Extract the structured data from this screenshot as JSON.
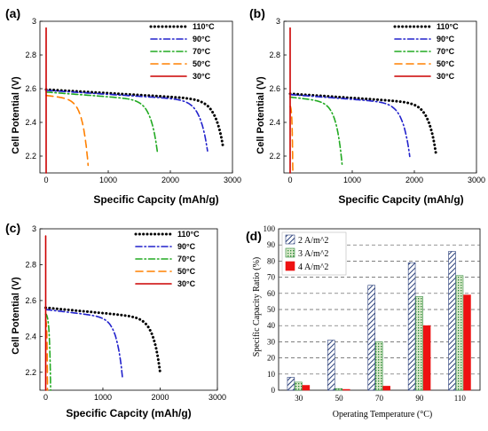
{
  "chart_data": [
    {
      "type": "line",
      "panel_label": "(a)",
      "xlabel": "Specific Capcity (mAh/g)",
      "ylabel": "Cell Potential (V)",
      "xlim": [
        -100,
        3000
      ],
      "ylim": [
        2.1,
        3.0
      ],
      "xticks": [
        0,
        1000,
        2000,
        3000
      ],
      "yticks": [
        2.2,
        2.4,
        2.6,
        2.8,
        3.0
      ],
      "xtick_labels": [
        "0",
        "1000",
        "2000",
        "3000"
      ],
      "ytick_labels": [
        "2.2",
        "2.4",
        "2.6",
        "2.8",
        "3"
      ],
      "legend_position": "top-right",
      "series": [
        {
          "name": "110°C",
          "color": "#000000",
          "style": "dotted",
          "v0": 2.595,
          "slope": 2.18e-05,
          "qmax": 2800,
          "drop": 0.19,
          "k": 130
        },
        {
          "name": "90°C",
          "color": "#2222cc",
          "style": "dashdot",
          "v0": 2.59,
          "slope": 2.35e-05,
          "qmax": 2550,
          "drop": 0.2,
          "k": 120
        },
        {
          "name": "70°C",
          "color": "#22aa22",
          "style": "dashdot",
          "v0": 2.58,
          "slope": 2.8e-05,
          "qmax": 1750,
          "drop": 0.21,
          "k": 110
        },
        {
          "name": "50°C",
          "color": "#ff8000",
          "style": "dashed",
          "v0": 2.56,
          "slope": 4e-05,
          "qmax": 640,
          "drop": 0.26,
          "k": 90
        },
        {
          "name": "30°C",
          "color": "#cc0000",
          "style": "solid",
          "v0": 2.96,
          "slope": 0.0,
          "qmax": 0,
          "drop": 0.0,
          "k": 1
        }
      ]
    },
    {
      "type": "line",
      "panel_label": "(b)",
      "xlabel": "Specific Capcity (mAh/g)",
      "ylabel": "Cell Potential (V)",
      "xlim": [
        -100,
        3000
      ],
      "ylim": [
        2.1,
        3.0
      ],
      "xticks": [
        0,
        1000,
        2000,
        3000
      ],
      "yticks": [
        2.2,
        2.4,
        2.6,
        2.8,
        3.0
      ],
      "xtick_labels": [
        "0",
        "1000",
        "2000",
        "3000"
      ],
      "ytick_labels": [
        "2.2",
        "2.4",
        "2.6",
        "2.8",
        "3"
      ],
      "legend_position": "top-right",
      "series": [
        {
          "name": "110°C",
          "color": "#000000",
          "style": "dotted",
          "v0": 2.57,
          "slope": 2.5e-05,
          "qmax": 2300,
          "drop": 0.2,
          "k": 120
        },
        {
          "name": "90°C",
          "color": "#2222cc",
          "style": "dashdot",
          "v0": 2.565,
          "slope": 2.8e-05,
          "qmax": 1880,
          "drop": 0.21,
          "k": 115
        },
        {
          "name": "70°C",
          "color": "#22aa22",
          "style": "dashdot",
          "v0": 2.55,
          "slope": 4e-05,
          "qmax": 800,
          "drop": 0.25,
          "k": 95
        },
        {
          "name": "50°C",
          "color": "#ff8000",
          "style": "dashed",
          "v0": 2.5,
          "slope": 0.0,
          "qmax": 40,
          "drop": 0.3,
          "k": 10
        },
        {
          "name": "30°C",
          "color": "#cc0000",
          "style": "solid",
          "v0": 2.96,
          "slope": 0.0,
          "qmax": 0,
          "drop": 0.0,
          "k": 1
        }
      ]
    },
    {
      "type": "line",
      "panel_label": "(c)",
      "xlabel": "Specific Capcity (mAh/g)",
      "ylabel": "Cell Potential (V)",
      "xlim": [
        -100,
        3000
      ],
      "ylim": [
        2.1,
        3.0
      ],
      "xticks": [
        0,
        1000,
        2000,
        3000
      ],
      "yticks": [
        2.2,
        2.4,
        2.6,
        2.8,
        3.0
      ],
      "xtick_labels": [
        "0",
        "1000",
        "2000",
        "3000"
      ],
      "ytick_labels": [
        "2.2",
        "2.4",
        "2.6",
        "2.8",
        "3"
      ],
      "legend_position": "top-right",
      "series": [
        {
          "name": "110°C",
          "color": "#000000",
          "style": "dotted",
          "v0": 2.56,
          "slope": 3e-05,
          "qmax": 1950,
          "drop": 0.2,
          "k": 120
        },
        {
          "name": "90°C",
          "color": "#2222cc",
          "style": "dashdot",
          "v0": 2.55,
          "slope": 3.8e-05,
          "qmax": 1300,
          "drop": 0.22,
          "k": 105
        },
        {
          "name": "70°C",
          "color": "#22aa22",
          "style": "dashdot",
          "v0": 2.53,
          "slope": 0.0,
          "qmax": 80,
          "drop": 0.3,
          "k": 20
        },
        {
          "name": "50°C",
          "color": "#ff8000",
          "style": "dashed",
          "v0": 2.5,
          "slope": 0.0,
          "qmax": 30,
          "drop": 0.3,
          "k": 8
        },
        {
          "name": "30°C",
          "color": "#cc0000",
          "style": "solid",
          "v0": 2.96,
          "slope": 0.0,
          "qmax": 0,
          "drop": 0.0,
          "k": 1
        }
      ]
    },
    {
      "type": "bar",
      "panel_label": "(d)",
      "xlabel": "Operating Temperature (°C)",
      "ylabel": "Specific Capacity Ratio (%)",
      "ylim": [
        0,
        100
      ],
      "yticks": [
        0,
        10,
        20,
        30,
        40,
        50,
        60,
        70,
        80,
        90,
        100
      ],
      "categories": [
        "30",
        "50",
        "70",
        "90",
        "110"
      ],
      "grid": "horizontal dashed",
      "legend_position": "top-left",
      "series": [
        {
          "name": "2 A/m^2",
          "color": "#2a3f7a",
          "pattern": "diagonal-hatch",
          "values": [
            8,
            31,
            65,
            79,
            86
          ]
        },
        {
          "name": "3 A/m^2",
          "color": "#2e8b3a",
          "pattern": "dotted",
          "values": [
            5,
            1,
            30,
            58,
            71
          ]
        },
        {
          "name": "4 A/m^2",
          "color": "#ee1111",
          "pattern": "solid",
          "values": [
            3,
            0.5,
            2.5,
            40,
            59
          ]
        }
      ]
    }
  ]
}
